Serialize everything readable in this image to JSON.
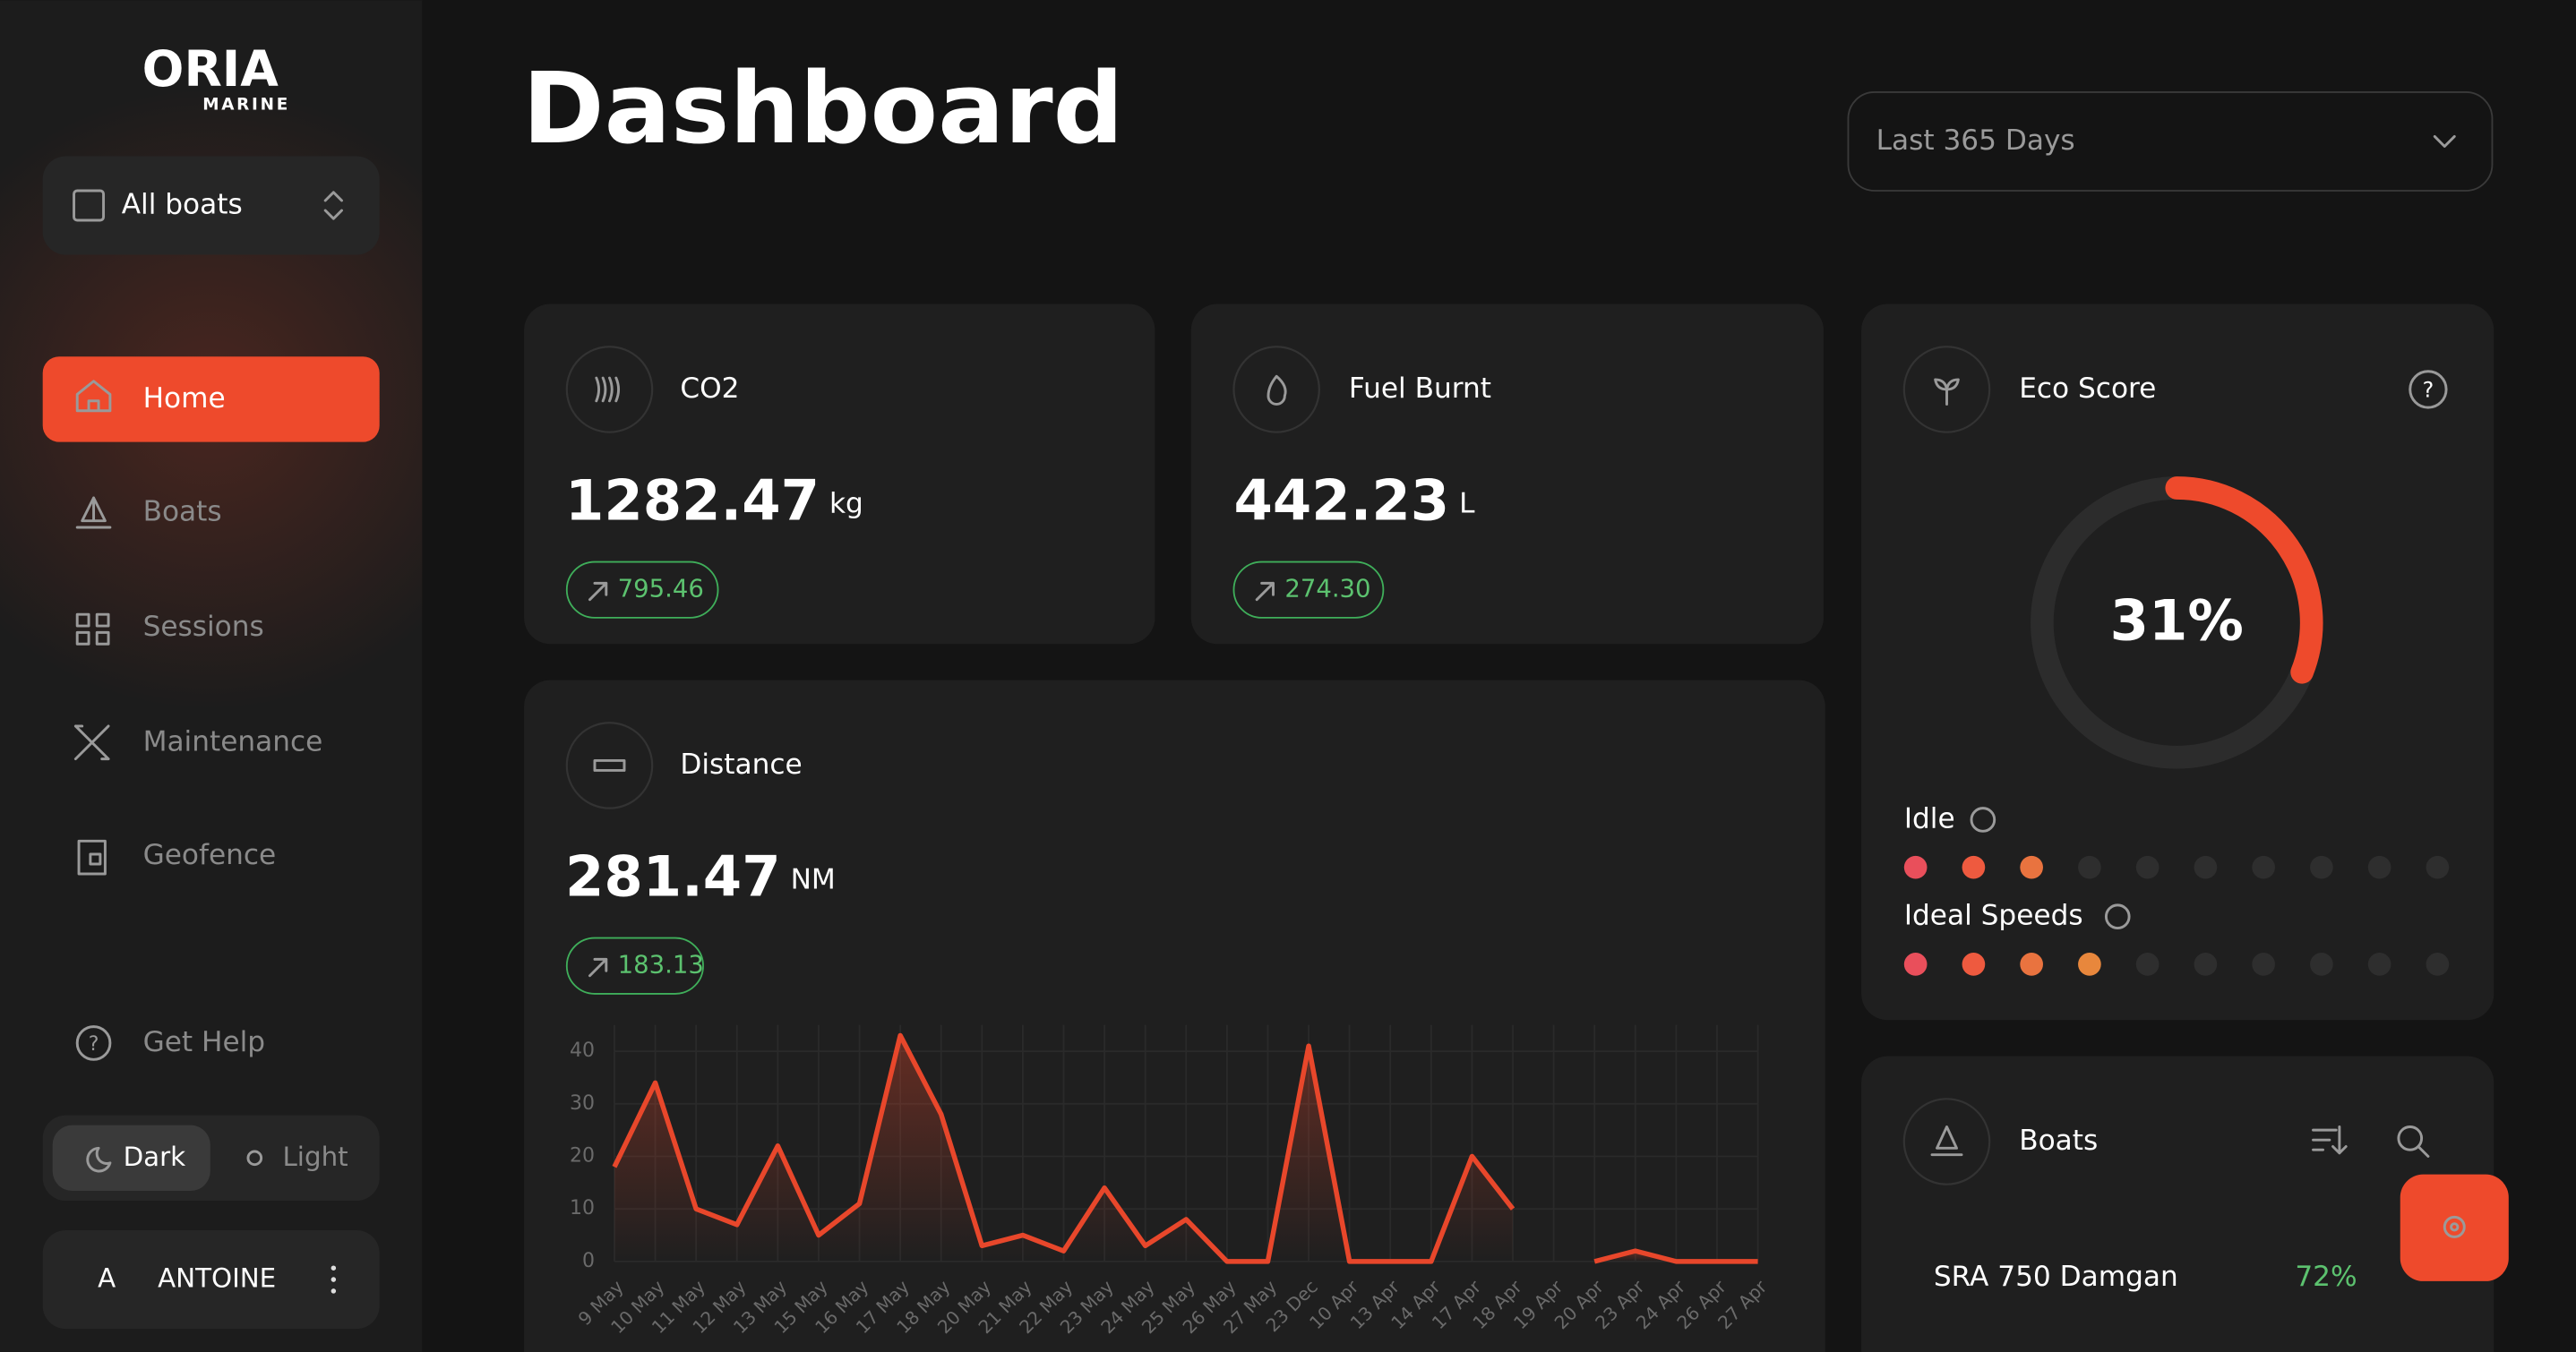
{
  "sidebar": {
    "logo": "ORIA",
    "logo_sub": "MARINE",
    "boat_selector": "All boats",
    "nav": [
      "Home",
      "Boats",
      "Sessions",
      "Maintenance",
      "Geofence"
    ],
    "help": "Get Help",
    "theme": [
      "Dark",
      "Light"
    ],
    "user_initial": "A",
    "user_name": "ANTOINE"
  },
  "header": {
    "title": "Dashboard",
    "range": "Last 365 Days"
  },
  "cards": {
    "co2": {
      "label": "CO2",
      "value": "1282.47",
      "unit": "kg",
      "change": "795.46"
    },
    "fuel": {
      "label": "Fuel Burnt",
      "value": "442.23",
      "unit": "L",
      "change": "274.30"
    },
    "distance": {
      "label": "Distance",
      "value": "281.47",
      "unit": "NM",
      "change": "183.13"
    }
  },
  "eco": {
    "label": "Eco Score",
    "value": 31,
    "value_label": "31%",
    "idle": "Idle",
    "idle_level": 3,
    "speeds": "Ideal Speeds",
    "speeds_level": 4,
    "dot_count": 10,
    "dot_colors": [
      "#e94f5b",
      "#ee5a3f",
      "#e9733f",
      "#e8873c"
    ]
  },
  "boats": {
    "label": "Boats",
    "rows": [
      {
        "name": "SRA 750 Damgan",
        "score": "72%"
      }
    ]
  },
  "distance_chart": {
    "type": "line",
    "color": "#e8472b",
    "categories": [
      "9 May",
      "10 May",
      "11 May",
      "12 May",
      "13 May",
      "15 May",
      "16 May",
      "17 May",
      "18 May",
      "20 May",
      "21 May",
      "22 May",
      "23 May",
      "24 May",
      "25 May",
      "26 May",
      "27 May",
      "23 Dec",
      "10 Apr",
      "13 Apr",
      "14 Apr",
      "17 Apr",
      "18 Apr",
      "19 Apr",
      "20 Apr",
      "23 Apr",
      "24 Apr",
      "26 Apr",
      "27 Apr"
    ],
    "values": [
      18,
      34,
      10,
      7,
      22,
      5,
      11,
      43,
      28,
      3,
      5,
      2,
      14,
      3,
      8,
      0,
      0,
      41,
      0,
      0,
      0,
      20,
      10,
      null,
      0,
      2,
      0,
      0,
      0
    ],
    "ylim": [
      0,
      45
    ],
    "yticks": [
      0,
      10,
      20,
      30,
      40
    ],
    "grid": true
  }
}
